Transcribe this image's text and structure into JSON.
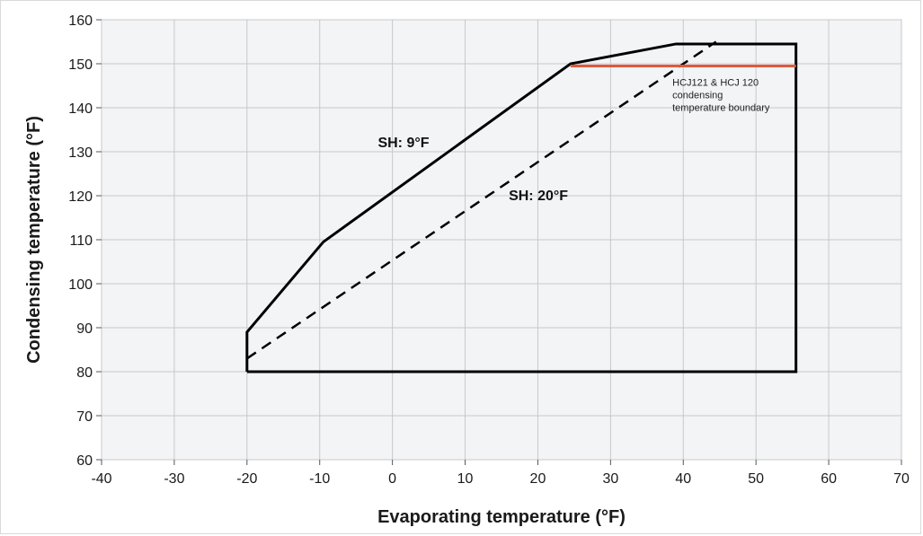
{
  "chart_data": {
    "type": "line",
    "xlabel": "Evaporating temperature (°F)",
    "ylabel": "Condensing temperature (°F)",
    "xlim": [
      -40,
      70
    ],
    "ylim": [
      60,
      160
    ],
    "x_ticks": [
      -40,
      -30,
      -20,
      -10,
      0,
      10,
      20,
      30,
      40,
      50,
      60,
      70
    ],
    "y_ticks": [
      60,
      70,
      80,
      90,
      100,
      110,
      120,
      130,
      140,
      150,
      160
    ],
    "grid": true,
    "series": [
      {
        "name": "SH: 9°F",
        "style": "solid",
        "color": "#000000",
        "points": [
          [
            -20,
            80
          ],
          [
            -20,
            89
          ],
          [
            -9.5,
            109.5
          ],
          [
            24.5,
            150
          ],
          [
            39,
            154.5
          ],
          [
            55.5,
            154.5
          ],
          [
            55.5,
            80
          ],
          [
            -20,
            80
          ]
        ]
      },
      {
        "name": "SH: 20°F",
        "style": "dashed",
        "color": "#000000",
        "points": [
          [
            -20,
            83
          ],
          [
            44.5,
            155
          ]
        ]
      },
      {
        "name": "HCJ121 & HCJ 120 condensing temperature boundary",
        "style": "solid",
        "color": "#e05a3f",
        "points": [
          [
            24.5,
            149.5
          ],
          [
            55.5,
            149.5
          ]
        ]
      }
    ],
    "annotations": [
      {
        "text": "SH: 9°F",
        "x": -2,
        "y": 131
      },
      {
        "text": "SH: 20°F",
        "x": 16,
        "y": 119
      },
      {
        "lines": [
          "HCJ121 & HCJ 120",
          "condensing",
          "temperature boundary"
        ],
        "x": 38.5,
        "y": 145
      }
    ],
    "colors": {
      "plot_background": "#f2f4f6",
      "grid": "#c8c8c8",
      "boundary": "#e05a3f"
    }
  }
}
